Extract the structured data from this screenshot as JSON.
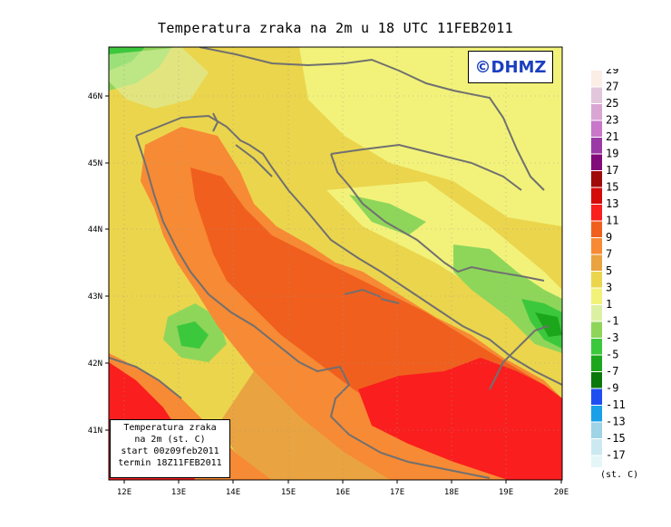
{
  "title": "Temperatura zraka na 2m u 18 UTC 11FEB2011",
  "copyright": "©DHMZ",
  "info_box": {
    "line1": "Temperatura zraka",
    "line2": "na 2m (st. C)",
    "line3": "start 00z09feb2011",
    "line4": "termin 18Z11FEB2011"
  },
  "axes": {
    "lon_ticks": [
      "12E",
      "13E",
      "14E",
      "15E",
      "16E",
      "17E",
      "18E",
      "19E",
      "20E"
    ],
    "lat_ticks": [
      "46N",
      "45N",
      "44N",
      "43N",
      "42N",
      "41N"
    ]
  },
  "legend": {
    "units": "(st. C)",
    "entries": [
      {
        "label": "29",
        "color": "#fbeee6"
      },
      {
        "label": "27",
        "color": "#e2c7dc"
      },
      {
        "label": "25",
        "color": "#d9a6d4"
      },
      {
        "label": "23",
        "color": "#c877c9"
      },
      {
        "label": "21",
        "color": "#9b3aa7"
      },
      {
        "label": "19",
        "color": "#820a7a"
      },
      {
        "label": "17",
        "color": "#a00a0a"
      },
      {
        "label": "15",
        "color": "#d40a0a"
      },
      {
        "label": "13",
        "color": "#fa1e1e"
      },
      {
        "label": "11",
        "color": "#f05f1e"
      },
      {
        "label": "9",
        "color": "#f78a34"
      },
      {
        "label": "7",
        "color": "#e9a340"
      },
      {
        "label": "5",
        "color": "#ebd54c"
      },
      {
        "label": "3",
        "color": "#f2f27a"
      },
      {
        "label": "1",
        "color": "#dcf0a2"
      },
      {
        "label": "-1",
        "color": "#8ed65a"
      },
      {
        "label": "-3",
        "color": "#3cc83c"
      },
      {
        "label": "-5",
        "color": "#1ca61c"
      },
      {
        "label": "-7",
        "color": "#0a780a"
      },
      {
        "label": "-9",
        "color": "#1e4ef2"
      },
      {
        "label": "-11",
        "color": "#1aa0e8"
      },
      {
        "label": "-13",
        "color": "#9fd3e6"
      },
      {
        "label": "-15",
        "color": "#cce9f1"
      },
      {
        "label": "-17",
        "color": "#e4f6f7"
      }
    ]
  }
}
